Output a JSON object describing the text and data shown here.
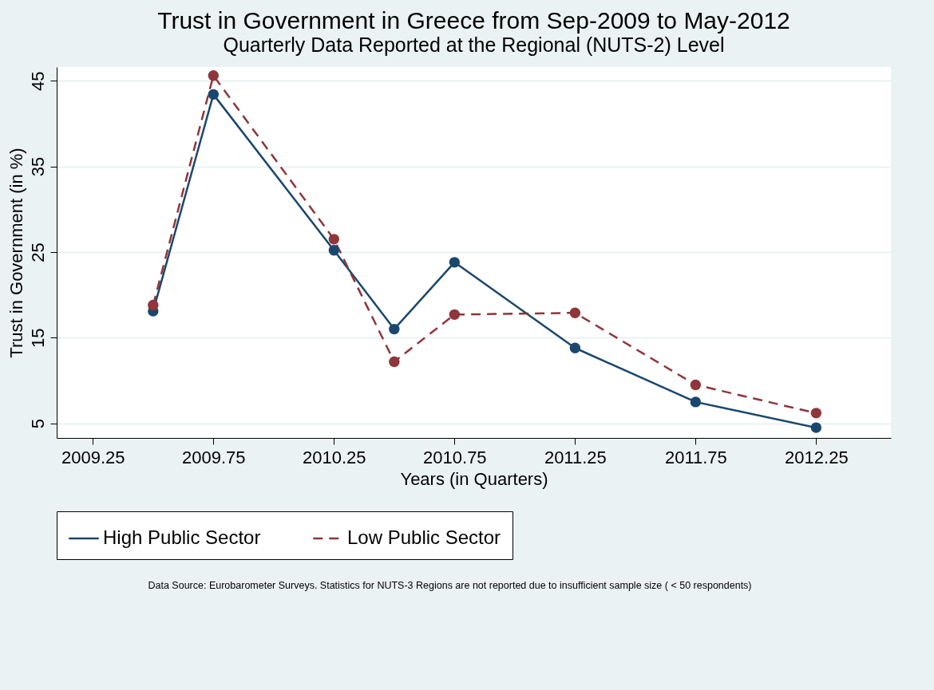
{
  "chart_data": {
    "type": "line",
    "title": "Trust in Government in Greece from Sep-2009 to May-2012",
    "subtitle": "Quarterly Data Reported at the Regional (NUTS-2) Level",
    "xlabel": "Years (in Quarters)",
    "ylabel": "Trust in Government (in %)",
    "x": [
      2009.5,
      2009.75,
      2010.25,
      2010.5,
      2010.75,
      2011.25,
      2011.75,
      2012.25
    ],
    "series": [
      {
        "name": "High Public Sector",
        "color": "#1a476f",
        "line_style": "solid",
        "values": [
          18.1,
          43.4,
          25.2,
          16.0,
          23.8,
          13.8,
          7.5,
          4.5
        ]
      },
      {
        "name": "Low Public Sector",
        "color": "#90353b",
        "line_style": "dashed",
        "values": [
          18.8,
          45.6,
          26.5,
          12.2,
          17.7,
          17.9,
          9.5,
          6.2
        ]
      }
    ],
    "xlim": [
      2009.1,
      2012.56
    ],
    "xticks": [
      2009.25,
      2009.75,
      2010.25,
      2010.75,
      2011.25,
      2011.75,
      2012.25
    ],
    "ylim": [
      3.3,
      46.6
    ],
    "yticks": [
      5,
      15,
      25,
      35,
      45
    ],
    "grid": "y",
    "legend": "bottom",
    "marker": "circle",
    "annotations": [
      "Data Source: Eurobarometer Surveys. Statistics for NUTS-3 Regions are not reported due to insufficient sample size ( < 50 respondents)"
    ]
  }
}
